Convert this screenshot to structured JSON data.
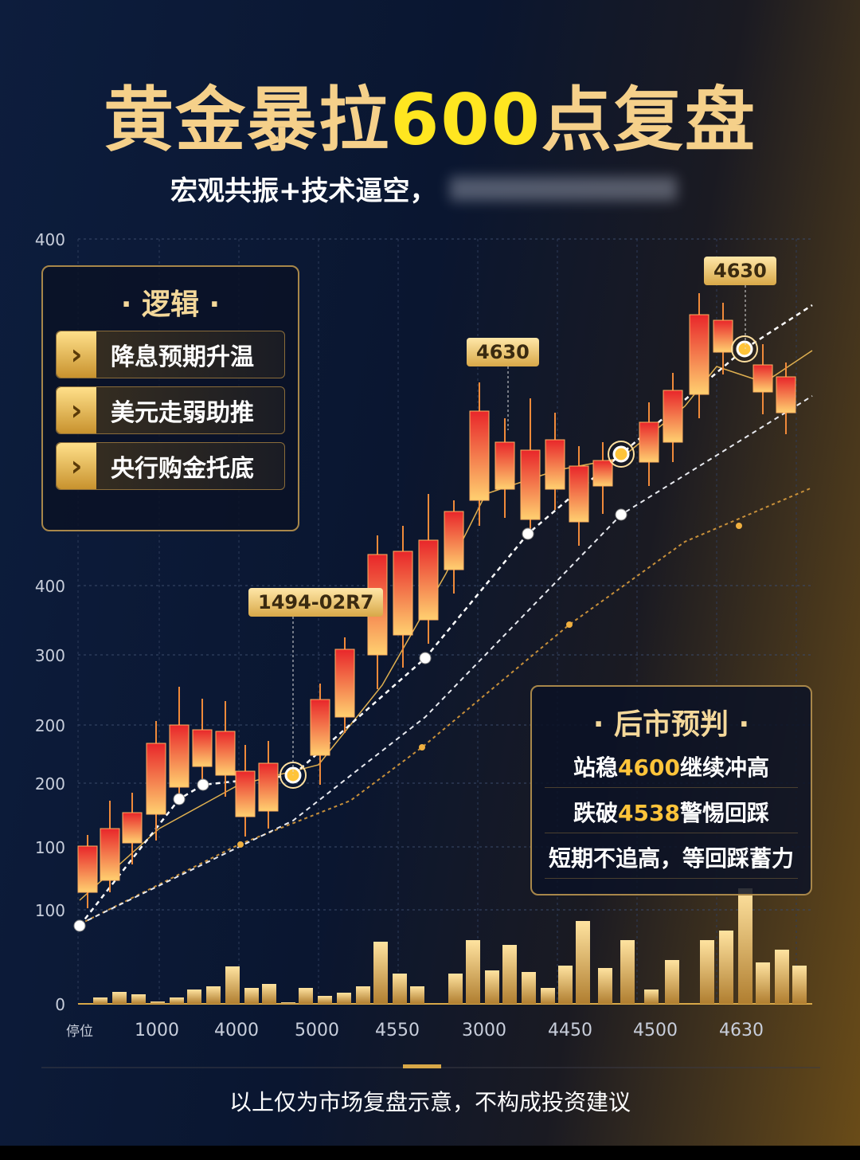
{
  "header": {
    "title": {
      "part1": "黄金暴拉",
      "highlight": "600",
      "part2": "点复盘"
    },
    "subtitle": "宏观共振+技术逼空，"
  },
  "axis": {
    "y_labels": [
      "400",
      "400",
      "300",
      "200",
      "200",
      "100",
      "100",
      "0"
    ],
    "x_labels": [
      "停位",
      "1000",
      "4000",
      "5000",
      "4550",
      "3000",
      "4450",
      "4500",
      "4630"
    ]
  },
  "callouts": [
    "1494-02R7",
    "4630",
    "4630"
  ],
  "logic": {
    "heading": "逻辑",
    "items": [
      "降息预期升温",
      "美元走弱助推",
      "央行购金托底"
    ]
  },
  "forecast": {
    "heading": "后市预判",
    "items": [
      {
        "before": "站稳",
        "number": "4600",
        "after": "继续冲高"
      },
      {
        "before": "跌破",
        "number": "4538",
        "after": "警惕回踩"
      },
      {
        "before": "短期不追高，等回踩蓄力"
      }
    ]
  },
  "footer": "以上仅为市场复盘示意，不构成投资建议"
}
